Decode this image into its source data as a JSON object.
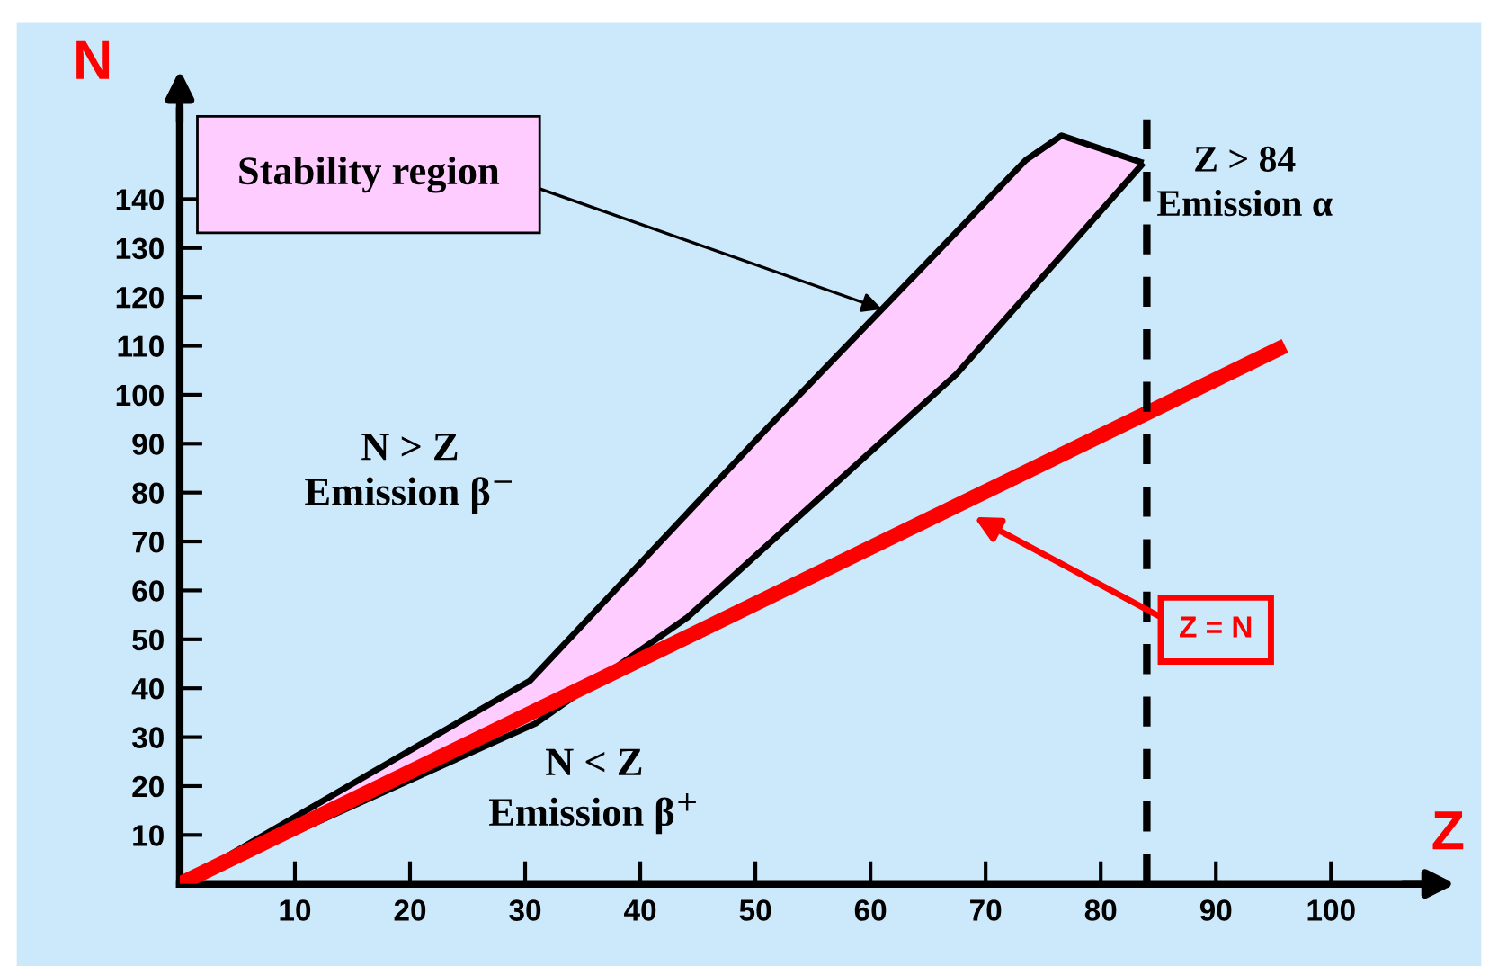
{
  "chart_data": {
    "type": "line",
    "xlabel": "Z",
    "ylabel": "N",
    "xlim": [
      0,
      108
    ],
    "ylim": [
      0,
      158
    ],
    "xticks": [
      10,
      20,
      30,
      40,
      50,
      60,
      70,
      80,
      90,
      100
    ],
    "yticks": [
      10,
      20,
      30,
      40,
      50,
      60,
      70,
      80,
      90,
      100,
      110,
      120,
      130,
      140
    ],
    "series": [
      {
        "color": "#000000",
        "x": [
          0,
          30.4,
          50.8,
          73.5,
          76.6,
          83.7
        ],
        "values": [
          0,
          41.5,
          92.6,
          148,
          153,
          147.4
        ]
      },
      {
        "color": "#000000",
        "x": [
          0,
          30.9,
          44.1,
          67.5,
          83.7
        ],
        "values": [
          0,
          32.8,
          54.5,
          104.3,
          147.4
        ]
      },
      {
        "color": "#ff0000",
        "x": [
          0,
          96
        ],
        "values": [
          0,
          110
        ]
      }
    ],
    "ref_lines": [
      {
        "axis": "x",
        "value": 84,
        "label": "Z > 84\nEmission α",
        "color": "#000000",
        "line_style": "dashed"
      }
    ],
    "annotations": [
      {
        "text": "Stability region",
        "x": 61,
        "y": 117.5
      },
      "Z = N",
      "N > Z\nEmission β$^{−}$",
      "N < Z\nEmission β$^{+}$"
    ]
  }
}
